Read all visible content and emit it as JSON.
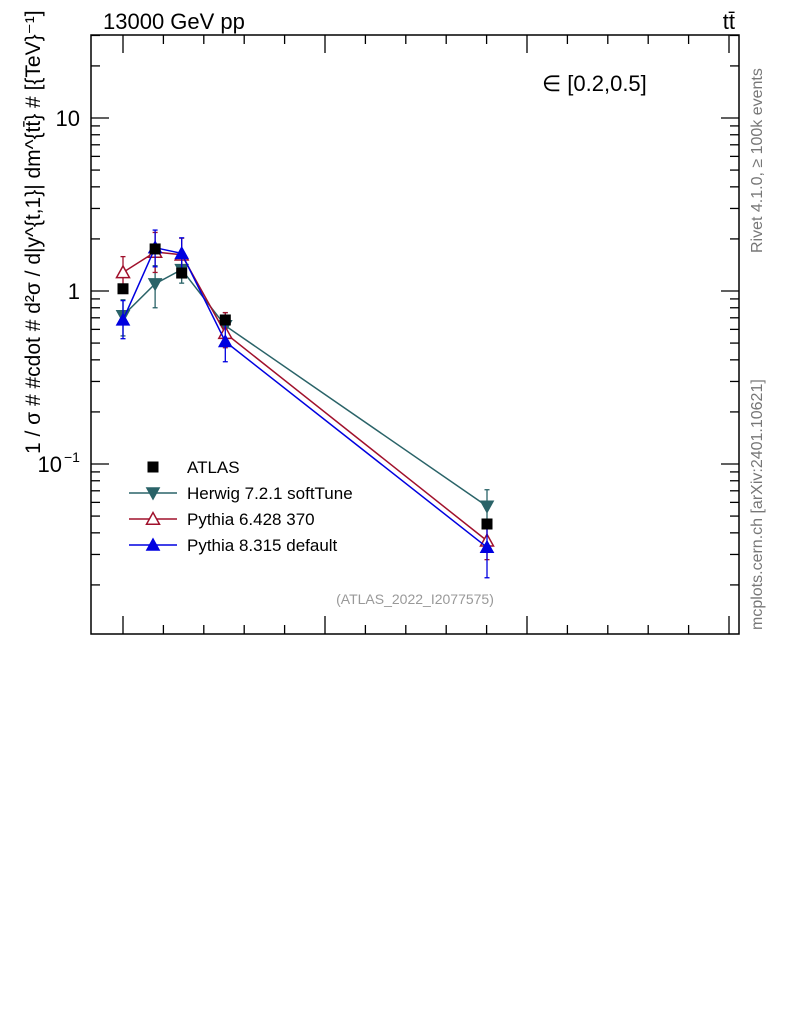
{
  "header": {
    "energy_label": "13000 GeV pp",
    "process_label": "tt̄",
    "side_label_top": "Rivet 4.1.0, ≥ 100k events",
    "side_label_bottom": "mcplots.cern.ch [arXiv:2401.10621]",
    "cut_label": "∈ [0.2,0.5]",
    "watermark": "(ATLAS_2022_I2077575)"
  },
  "chart_data": {
    "type": "line",
    "title": "",
    "xlabel": "",
    "ylabel": "1 / σ # #cdot # d²σ / d|y^{t,1}| dm^{tt̄} # [{TeV}⁻¹]",
    "yscale": "log",
    "ylim": [
      0.012,
      30
    ],
    "xlim": [
      0,
      1
    ],
    "ytick_labels": [
      {
        "value": 0.1,
        "label": "10",
        "exp": "−1"
      },
      {
        "value": 1,
        "label": "1",
        "exp": ""
      },
      {
        "value": 10,
        "label": "10",
        "exp": ""
      }
    ],
    "x": [
      0.082,
      0.163,
      0.23,
      0.34,
      1.0
    ],
    "x_note": "no x-axis tick labels shown; x positions given as fraction of the last bin center",
    "series": [
      {
        "name": "ATLAS",
        "color": "#000000",
        "marker": "square",
        "values": [
          1.03,
          1.75,
          1.27,
          0.68,
          0.045
        ],
        "err_low": [
          0,
          0,
          0,
          0,
          0
        ],
        "err_high": [
          0,
          0,
          0,
          0,
          0
        ]
      },
      {
        "name": "Herwig 7.2.1 softTune",
        "color": "#2a6368",
        "marker": "triangle-down",
        "values": [
          0.72,
          1.1,
          1.33,
          0.63,
          0.057
        ],
        "err_low": [
          0.17,
          0.3,
          0.22,
          0.1,
          0.01
        ],
        "err_high": [
          0.17,
          0.3,
          0.22,
          0.12,
          0.014
        ]
      },
      {
        "name": "Pythia 6.428 370",
        "color": "#a0112c",
        "marker": "triangle-up-open",
        "values": [
          1.28,
          1.68,
          1.62,
          0.57,
          0.036
        ],
        "err_low": [
          0.22,
          0.4,
          0.33,
          0.1,
          0.008
        ],
        "err_high": [
          0.3,
          0.5,
          0.4,
          0.18,
          0.01
        ]
      },
      {
        "name": "Pythia 8.315 default",
        "color": "#0000e0",
        "marker": "triangle-up",
        "values": [
          0.68,
          1.78,
          1.65,
          0.51,
          0.033
        ],
        "err_low": [
          0.15,
          0.4,
          0.34,
          0.12,
          0.011
        ],
        "err_high": [
          0.2,
          0.47,
          0.38,
          0.17,
          0.014
        ]
      }
    ],
    "legend_position": "lower-left",
    "grid": false
  }
}
